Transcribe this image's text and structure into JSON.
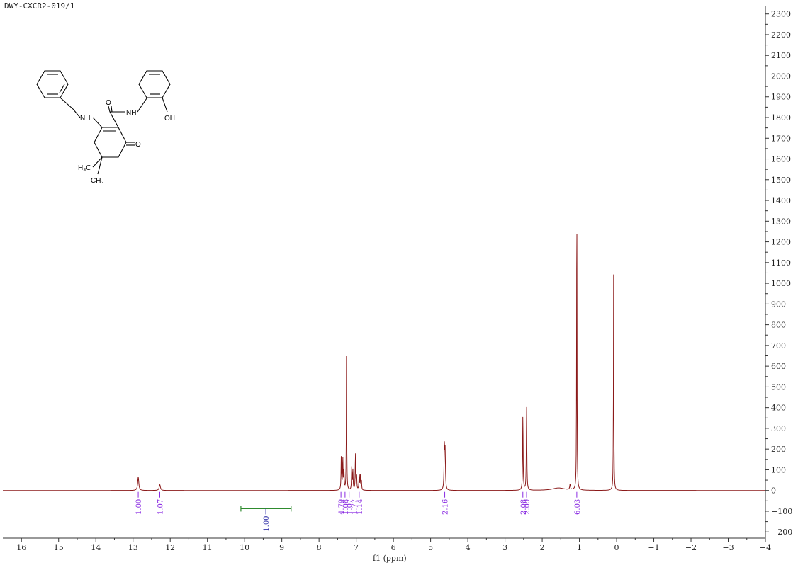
{
  "sample_id": "DWY-CXCR2-019/1",
  "structure_labels": {
    "nh_amine": "NH",
    "nh_amide": "NH",
    "oh": "OH",
    "o_amide": "O",
    "o_ketone": "O",
    "h3c": "H₃C",
    "ch3": "CH₃"
  },
  "colors": {
    "spectrum": "#8b1a1a",
    "integral_label": "#8a2be2",
    "integral_curve": "#8a2be2",
    "reference_integral": "#2e8b2e",
    "axis": "#333333"
  },
  "chart_data": {
    "type": "line",
    "title": "",
    "xlabel": "f1 (ppm)",
    "ylabel": "",
    "xlim": [
      16.5,
      -4
    ],
    "ylim": [
      -230,
      2340
    ],
    "x_reversed": true,
    "x_ticks": [
      16,
      15,
      14,
      13,
      12,
      11,
      10,
      9,
      8,
      7,
      6,
      5,
      4,
      3,
      2,
      1,
      0,
      -1,
      -2,
      -3,
      -4
    ],
    "y_ticks": [
      -200,
      -100,
      0,
      100,
      200,
      300,
      400,
      500,
      600,
      700,
      800,
      900,
      1000,
      1100,
      1200,
      1300,
      1400,
      1500,
      1600,
      1700,
      1800,
      1900,
      2000,
      2100,
      2200,
      2300
    ],
    "y_axis_side": "right",
    "peaks": [
      {
        "ppm": 12.86,
        "height": 65,
        "width": 0.018
      },
      {
        "ppm": 12.28,
        "height": 28,
        "width": 0.02
      },
      {
        "ppm": 7.4,
        "height": 180,
        "width": 0.008
      },
      {
        "ppm": 7.36,
        "height": 150,
        "width": 0.008
      },
      {
        "ppm": 7.33,
        "height": 95,
        "width": 0.008
      },
      {
        "ppm": 7.26,
        "height": 730,
        "width": 0.006
      },
      {
        "ppm": 7.12,
        "height": 110,
        "width": 0.008
      },
      {
        "ppm": 7.09,
        "height": 95,
        "width": 0.008
      },
      {
        "ppm": 7.02,
        "height": 175,
        "width": 0.008
      },
      {
        "ppm": 6.99,
        "height": 70,
        "width": 0.008
      },
      {
        "ppm": 6.92,
        "height": 80,
        "width": 0.008
      },
      {
        "ppm": 6.89,
        "height": 70,
        "width": 0.008
      },
      {
        "ppm": 6.86,
        "height": 45,
        "width": 0.008
      },
      {
        "ppm": 4.63,
        "height": 200,
        "width": 0.01
      },
      {
        "ppm": 4.61,
        "height": 180,
        "width": 0.01
      },
      {
        "ppm": 2.52,
        "height": 365,
        "width": 0.008
      },
      {
        "ppm": 2.42,
        "height": 405,
        "width": 0.008
      },
      {
        "ppm": 1.56,
        "height": 12,
        "width": 0.2
      },
      {
        "ppm": 1.25,
        "height": 28,
        "width": 0.012
      },
      {
        "ppm": 1.07,
        "height": 1480,
        "width": 0.006
      },
      {
        "ppm": 0.08,
        "height": 1060,
        "width": 0.006
      }
    ],
    "integrals": [
      {
        "label": "1.00",
        "ppm": 12.86
      },
      {
        "label": "1.07",
        "ppm": 12.28
      },
      {
        "label": "4.79",
        "ppm": 7.41
      },
      {
        "label": "1.08",
        "ppm": 7.3
      },
      {
        "label": "1.07",
        "ppm": 7.19
      },
      {
        "label": "1.77",
        "ppm": 7.06
      },
      {
        "label": "1.14",
        "ppm": 6.92
      },
      {
        "label": "2.16",
        "ppm": 4.62
      },
      {
        "label": "2.08",
        "ppm": 2.52
      },
      {
        "label": "2.09",
        "ppm": 2.42
      },
      {
        "label": "6.03",
        "ppm": 1.07
      }
    ],
    "reference_integral": {
      "label": "1.00",
      "ppm_from": 10.1,
      "ppm_to": 8.75,
      "ppm_label": 9.43
    }
  }
}
